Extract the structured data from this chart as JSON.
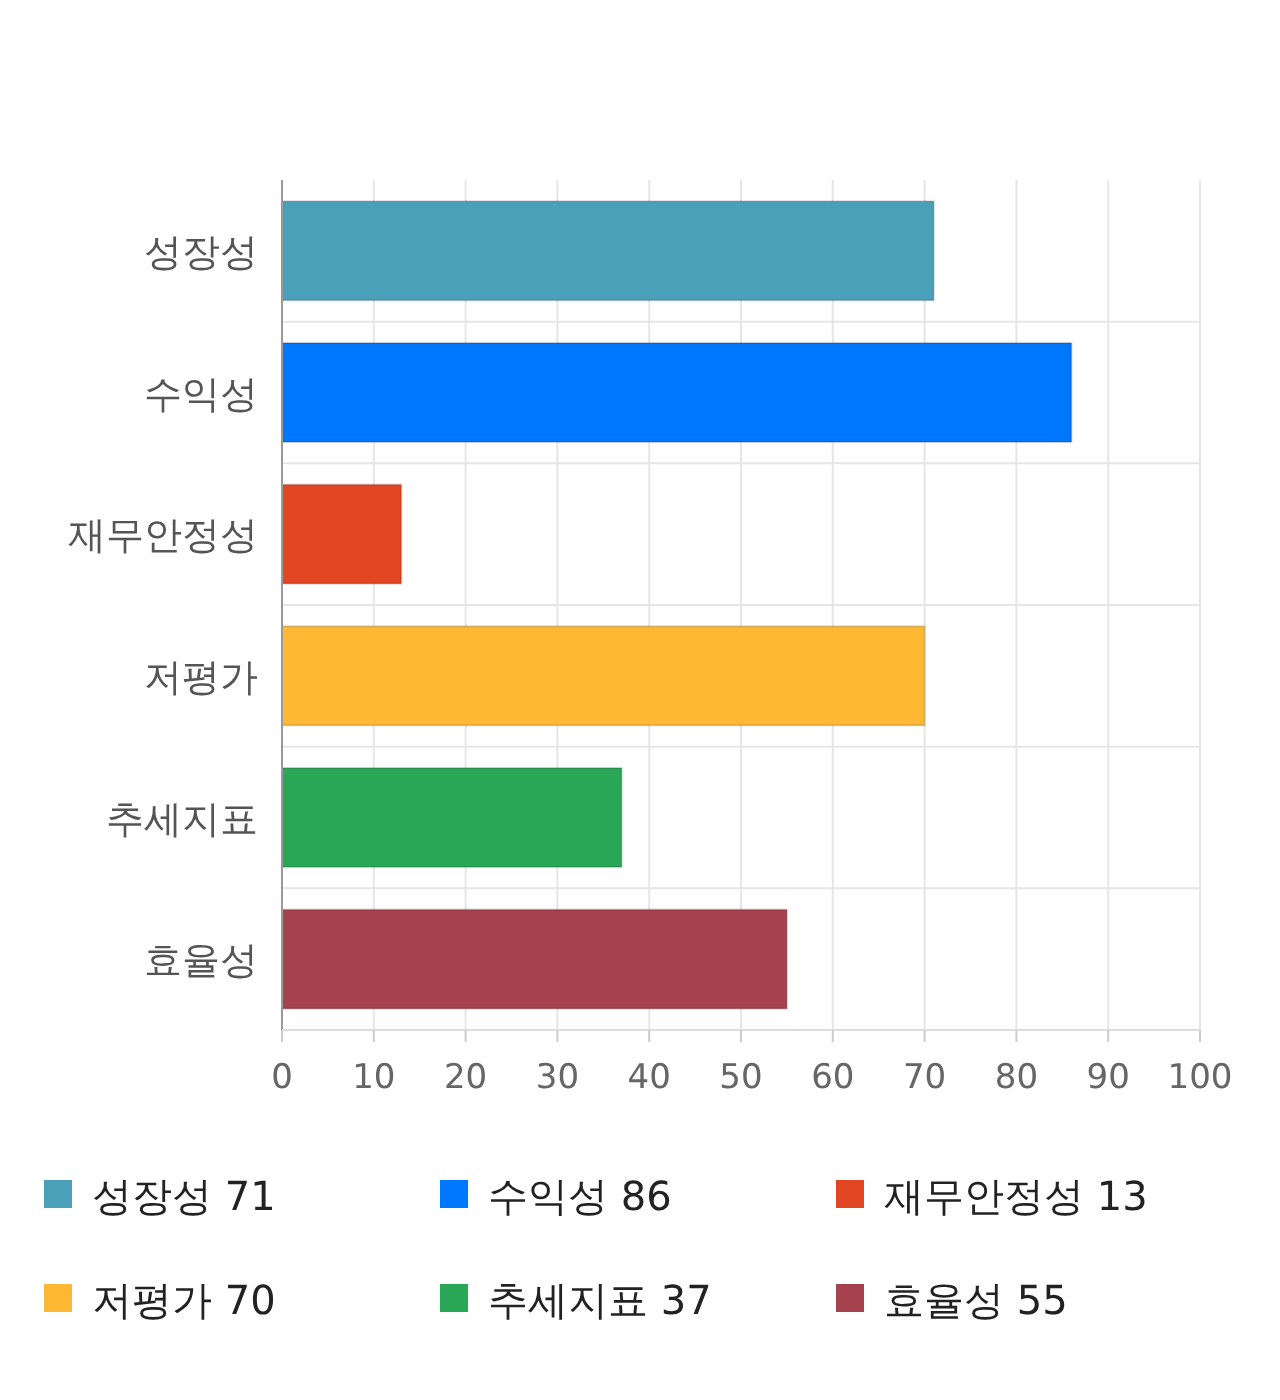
{
  "chart_data": {
    "type": "bar",
    "orientation": "horizontal",
    "categories": [
      "성장성",
      "수익성",
      "재무안정성",
      "저평가",
      "추세지표",
      "효율성"
    ],
    "series": [
      {
        "name": "성장성 71",
        "color": "#4aa0b8",
        "values": [
          71,
          null,
          null,
          null,
          null,
          null
        ]
      },
      {
        "name": "수익성 86",
        "color": "#0077ff",
        "values": [
          null,
          86,
          null,
          null,
          null,
          null
        ]
      },
      {
        "name": "재무안정성 13",
        "color": "#e34622",
        "values": [
          null,
          null,
          13,
          null,
          null,
          null
        ]
      },
      {
        "name": "저평가 70",
        "color": "#ffb833",
        "values": [
          null,
          null,
          null,
          70,
          null,
          null
        ]
      },
      {
        "name": "추세지표 37",
        "color": "#29a656",
        "values": [
          null,
          null,
          null,
          null,
          37,
          null
        ]
      },
      {
        "name": "효율성 55",
        "color": "#a6414e",
        "values": [
          null,
          null,
          null,
          null,
          null,
          55
        ]
      }
    ],
    "xlim": [
      0,
      100
    ],
    "xticks": [
      0,
      10,
      20,
      30,
      40,
      50,
      60,
      70,
      80,
      90,
      100
    ],
    "grid": true,
    "legend": "bottom"
  }
}
